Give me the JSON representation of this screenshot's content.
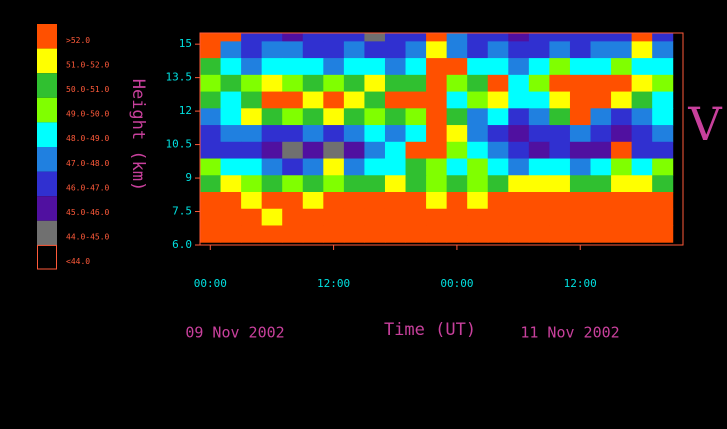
{
  "chart_data": {
    "type": "contour",
    "title": "V",
    "x_label": "Time (UT)",
    "y_label": "Height (km)",
    "annotations": [
      "09 Nov 2002",
      "11 Nov 2002"
    ],
    "xlim": [
      -1,
      46
    ],
    "ylim": [
      6.0,
      15.5
    ],
    "xticks": [
      {
        "value": 0,
        "label": "00:00"
      },
      {
        "value": 12,
        "label": "12:00"
      },
      {
        "value": 24,
        "label": "00:00"
      },
      {
        "value": 36,
        "label": "12:00"
      }
    ],
    "yticks": [
      {
        "value": 6,
        "label": "6.0"
      },
      7.5,
      9,
      10.5,
      12,
      13.5,
      15
    ],
    "x": [
      0,
      2,
      4,
      6,
      8,
      10,
      12,
      14,
      16,
      18,
      20,
      22,
      24,
      26,
      28,
      30,
      32,
      34,
      36,
      38,
      40,
      42,
      44
    ],
    "y": [
      15.5,
      14.75,
      14,
      13.25,
      12.5,
      11.75,
      11,
      10.25,
      9.5,
      8.75,
      8,
      7.25,
      6.5
    ],
    "z": [
      [
        54,
        54,
        46.5,
        46.5,
        45.5,
        46.5,
        46.5,
        46.5,
        44.5,
        46.5,
        46.5,
        54,
        47.5,
        46.5,
        46.5,
        45.5,
        46.5,
        46.5,
        46.5,
        46.5,
        46.5,
        54,
        46.5
      ],
      [
        54,
        47.5,
        46.5,
        47.5,
        47.5,
        46.5,
        46.5,
        47.5,
        46.5,
        46.5,
        47.5,
        51.5,
        47.5,
        46.5,
        47.5,
        46.5,
        46.5,
        47.5,
        46.5,
        47.5,
        47.5,
        51.5,
        47.5
      ],
      [
        50.5,
        48.5,
        47.5,
        48.5,
        48.5,
        48.5,
        47.5,
        48.5,
        48.5,
        47.5,
        48.5,
        54,
        54,
        48.5,
        48.5,
        47.5,
        48.5,
        49.5,
        48.5,
        48.5,
        49.5,
        48.5,
        48.5
      ],
      [
        49.5,
        50.5,
        49.5,
        51.5,
        49.5,
        50.5,
        49.5,
        50.5,
        51.5,
        50.5,
        50.5,
        54,
        49.5,
        50.5,
        54,
        48.5,
        49.5,
        54,
        54,
        54,
        54,
        51.5,
        49.5
      ],
      [
        50.5,
        48.5,
        50.5,
        54,
        54,
        51.5,
        54,
        51.5,
        50.5,
        54,
        54,
        54,
        48.5,
        49.5,
        51.5,
        48.5,
        48.5,
        51.5,
        54,
        54,
        51.5,
        50.5,
        48.5
      ],
      [
        47.5,
        48.5,
        51.5,
        50.5,
        49.5,
        50.5,
        51.5,
        50.5,
        49.5,
        50.5,
        49.5,
        54,
        50.5,
        47.5,
        48.5,
        46.5,
        47.5,
        50.5,
        54,
        47.5,
        46.5,
        47.5,
        48.5
      ],
      [
        46.5,
        47.5,
        47.5,
        46.5,
        46.5,
        47.5,
        46.5,
        47.5,
        48.5,
        47.5,
        48.5,
        54,
        51.5,
        47.5,
        46.5,
        45.5,
        46.5,
        46.5,
        47.5,
        46.5,
        45.5,
        46.5,
        47.5
      ],
      [
        46.5,
        46.5,
        46.5,
        45.5,
        44.5,
        45.5,
        44.5,
        45.5,
        47.5,
        48.5,
        54,
        54,
        49.5,
        48.5,
        47.5,
        46.5,
        45.5,
        46.5,
        45.5,
        45.5,
        54,
        46.5,
        46.5
      ],
      [
        49.5,
        48.5,
        48.5,
        47.5,
        46.5,
        47.5,
        51.5,
        47.5,
        48.5,
        48.5,
        50.5,
        49.5,
        48.5,
        49.5,
        48.5,
        47.5,
        48.5,
        48.5,
        47.5,
        48.5,
        49.5,
        48.5,
        49.5
      ],
      [
        50.5,
        51.5,
        49.5,
        50.5,
        49.5,
        50.5,
        49.5,
        50.5,
        50.5,
        51.5,
        50.5,
        49.5,
        50.5,
        49.5,
        50.5,
        51.5,
        51.5,
        51.5,
        50.5,
        50.5,
        51.5,
        51.5,
        50.5
      ],
      [
        54,
        54,
        51.5,
        54,
        54,
        51.5,
        54,
        54,
        54,
        54,
        54,
        51.5,
        54,
        51.5,
        54,
        54,
        54,
        54,
        54,
        54,
        54,
        54,
        54
      ],
      [
        54,
        54,
        54,
        51.5,
        54,
        54,
        54,
        54,
        54,
        54,
        54,
        54,
        54,
        54,
        54,
        54,
        54,
        54,
        54,
        54,
        54,
        54,
        54
      ],
      [
        54,
        54,
        54,
        54,
        54,
        54,
        54,
        54,
        54,
        54,
        54,
        54,
        54,
        54,
        54,
        54,
        54,
        54,
        54,
        54,
        54,
        54,
        54
      ]
    ],
    "levels": [
      {
        "label": ">52.0",
        "color": "#ff5000",
        "range": [
          52,
          null
        ]
      },
      {
        "label": "51.0-52.0",
        "color": "#ffff00",
        "range": [
          51,
          52
        ]
      },
      {
        "label": "50.0-51.0",
        "color": "#30c030",
        "range": [
          50,
          51
        ]
      },
      {
        "label": "49.0-50.0",
        "color": "#80ff00",
        "range": [
          49,
          50
        ]
      },
      {
        "label": "48.0-49.0",
        "color": "#00ffff",
        "range": [
          48,
          49
        ]
      },
      {
        "label": "47.0-48.0",
        "color": "#2080e0",
        "range": [
          47,
          48
        ]
      },
      {
        "label": "46.0-47.0",
        "color": "#3030d0",
        "range": [
          46,
          47
        ]
      },
      {
        "label": "45.0-46.0",
        "color": "#5010a0",
        "range": [
          45,
          46
        ]
      },
      {
        "label": "44.0-45.0",
        "color": "#707070",
        "range": [
          44,
          45
        ]
      },
      {
        "label": "<44.0",
        "color": "#000000",
        "range": [
          null,
          44
        ]
      }
    ]
  }
}
